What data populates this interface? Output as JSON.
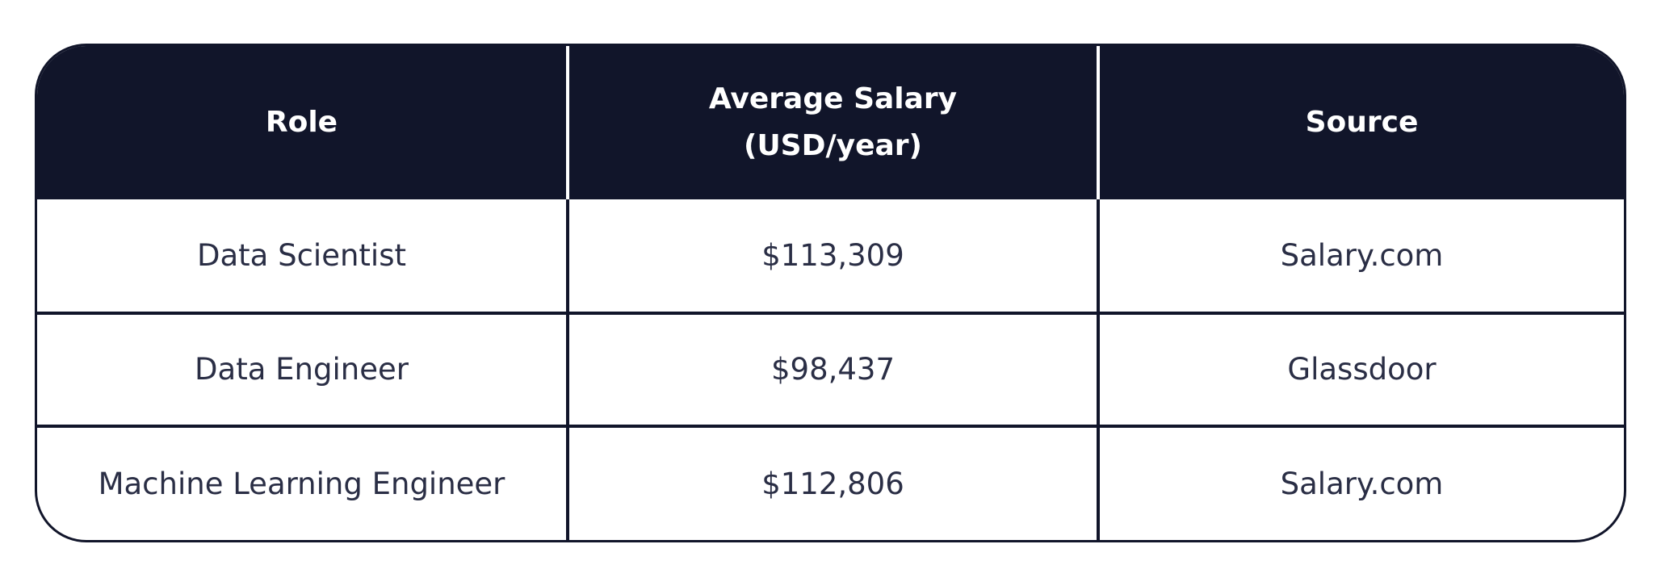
{
  "table": {
    "headers": {
      "role": "Role",
      "salary_line1": "Average Salary",
      "salary_line2": "(USD/year)",
      "source": "Source"
    },
    "rows": [
      {
        "role": "Data Scientist",
        "salary": "$113,309",
        "source": "Salary.com"
      },
      {
        "role": "Data Engineer",
        "salary": "$98,437",
        "source": "Glassdoor"
      },
      {
        "role": "Machine Learning Engineer",
        "salary": "$112,806",
        "source": "Salary.com"
      }
    ]
  },
  "colors": {
    "header_bg": "#11152a",
    "header_text": "#ffffff",
    "cell_text": "#2a2e45",
    "border": "#11152a"
  }
}
